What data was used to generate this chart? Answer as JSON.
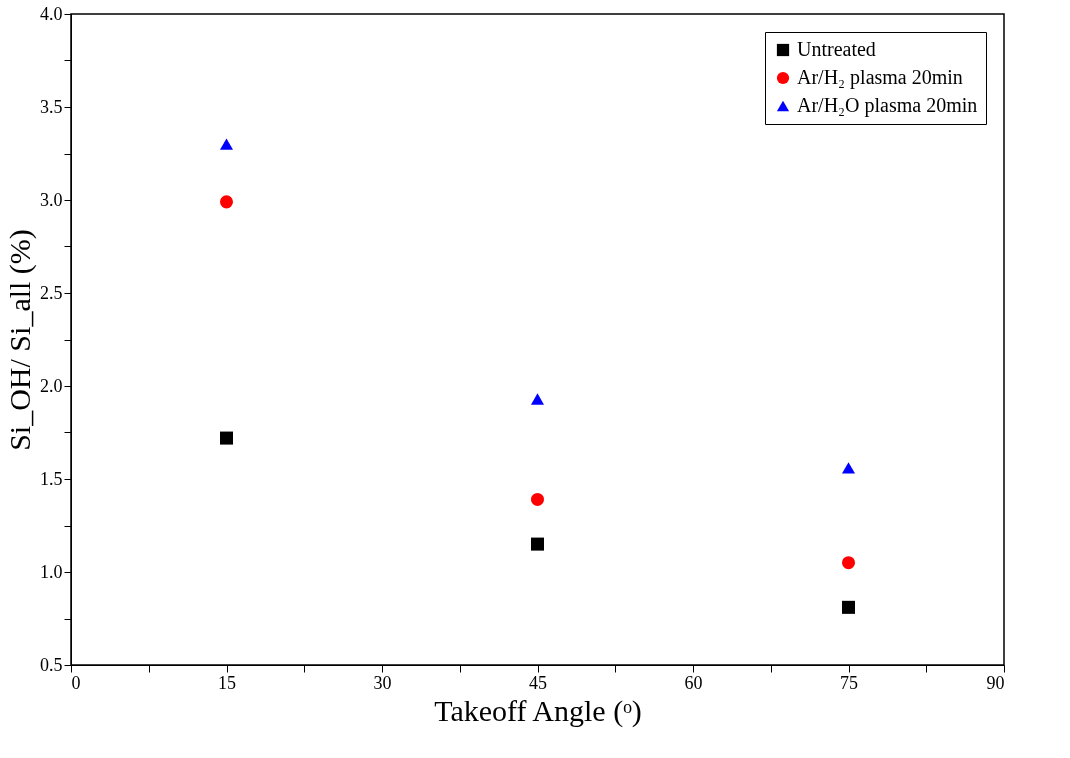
{
  "chart_data": {
    "type": "scatter",
    "xlabel": "Takeoff Angle (ᵒ)",
    "ylabel": "Si_OH/ Si_all (%)",
    "x": [
      15,
      45,
      75
    ],
    "series": [
      {
        "name": "Untreated",
        "color": "#000000",
        "marker": "square",
        "values": [
          1.72,
          1.15,
          0.81
        ]
      },
      {
        "name": "Ar/H₂ plasma 20min",
        "color": "#ff0000",
        "marker": "circle",
        "values": [
          2.99,
          1.39,
          1.05
        ]
      },
      {
        "name": "Ar/H₂O plasma 20min",
        "color": "#0000ff",
        "marker": "triangle",
        "values": [
          3.3,
          1.93,
          1.56
        ]
      }
    ],
    "xlim": [
      0,
      90
    ],
    "xticks": [
      0,
      {
        "value": 7.5,
        "label": null
      },
      15,
      {
        "value": 22.5,
        "label": null
      },
      30,
      {
        "value": 37.5,
        "label": null
      },
      45,
      {
        "value": 52.5,
        "label": null
      },
      60,
      {
        "value": 67.5,
        "label": null
      },
      75,
      {
        "value": 82.5,
        "label": null
      },
      90
    ],
    "ylim": [
      0.5,
      4.0
    ],
    "yticks": [
      0.5,
      {
        "value": 0.75,
        "label": null
      },
      {
        "value": 1,
        "label": "1.0"
      },
      {
        "value": 1.25,
        "label": null
      },
      1.5,
      {
        "value": 1.75,
        "label": null
      },
      {
        "value": 2,
        "label": "2.0"
      },
      {
        "value": 2.25,
        "label": null
      },
      2.5,
      {
        "value": 2.75,
        "label": null
      },
      {
        "value": 3,
        "label": "3.0"
      },
      {
        "value": 3.25,
        "label": null
      },
      3.5,
      {
        "value": 3.75,
        "label": null
      },
      {
        "value": 4,
        "label": "4.0"
      }
    ],
    "grid": false,
    "legend": "top right"
  }
}
